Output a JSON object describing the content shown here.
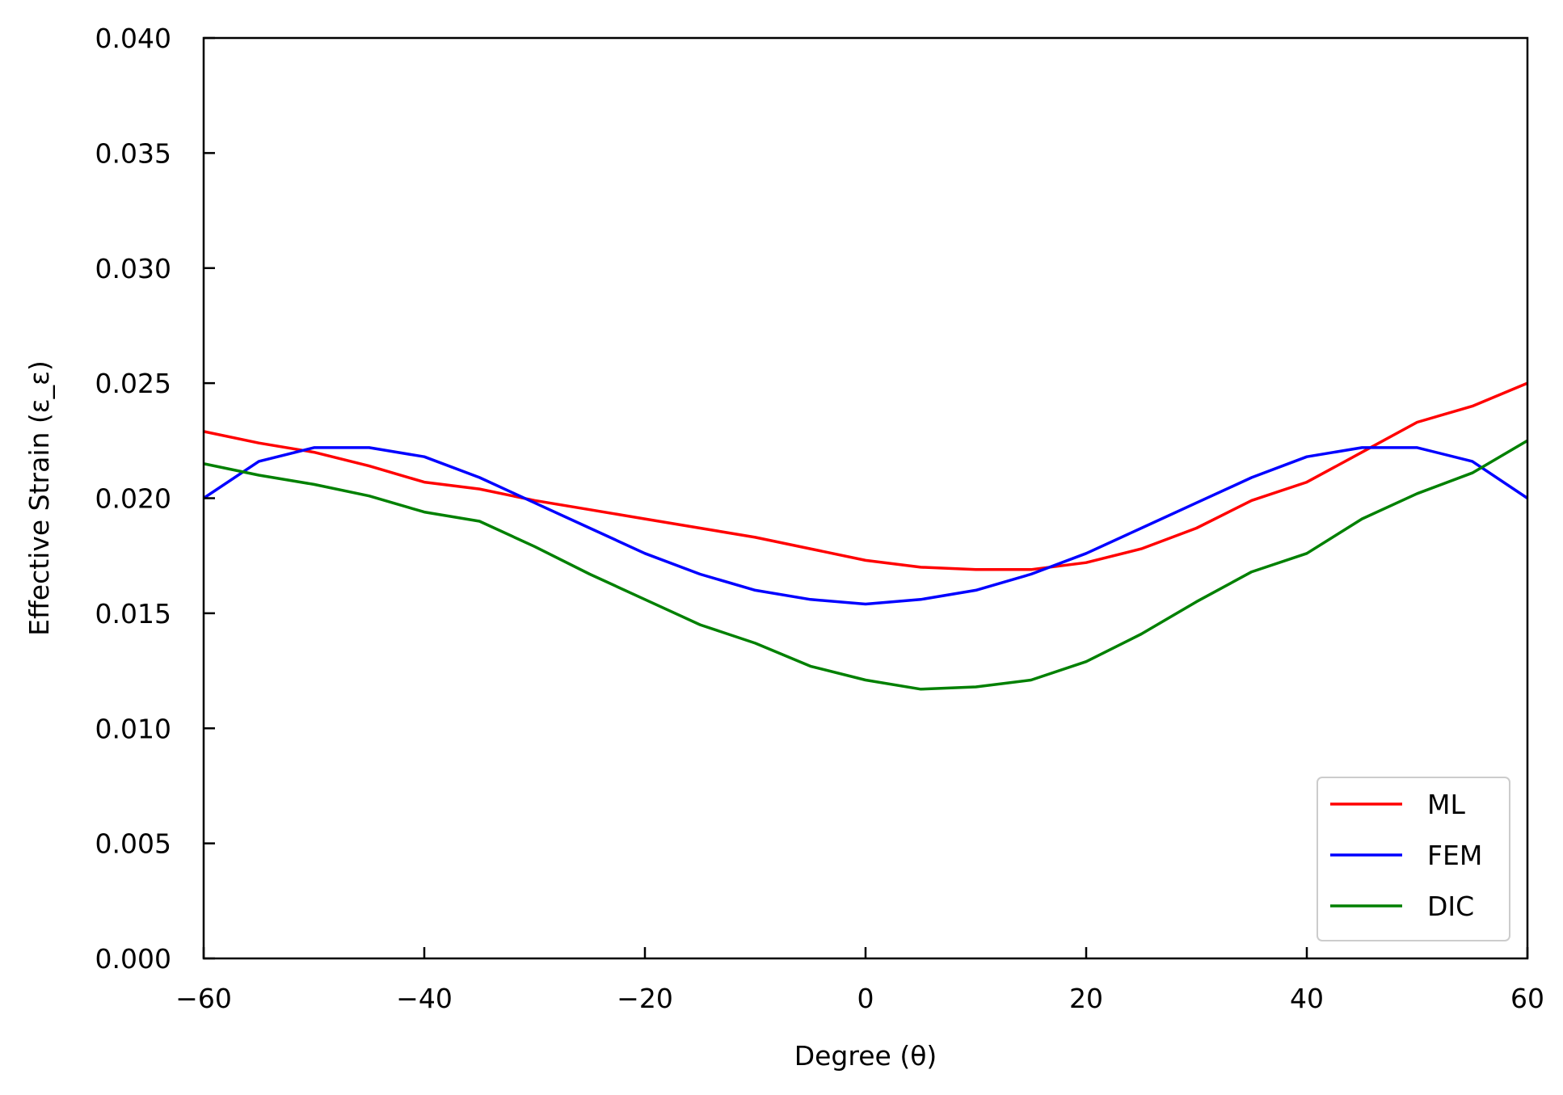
{
  "chart_data": {
    "type": "line",
    "title": "",
    "xlabel": "Degree (θ)",
    "ylabel": "Effective Strain (ε_ε)",
    "xlim": [
      -60,
      60
    ],
    "ylim": [
      0,
      0.04
    ],
    "x_ticks": [
      -60,
      -40,
      -20,
      0,
      20,
      40,
      60
    ],
    "x_tick_labels": [
      "−60",
      "−40",
      "−20",
      "0",
      "20",
      "40",
      "60"
    ],
    "y_ticks": [
      0,
      0.005,
      0.01,
      0.015,
      0.02,
      0.025,
      0.03,
      0.035,
      0.04
    ],
    "y_tick_labels": [
      "0.000",
      "0.005",
      "0.010",
      "0.015",
      "0.020",
      "0.025",
      "0.030",
      "0.035",
      "0.040"
    ],
    "grid": false,
    "legend_position": "bottom-right",
    "series": [
      {
        "name": "ML",
        "color": "#ff0000",
        "x": [
          -60,
          -55,
          -50,
          -45,
          -40,
          -35,
          -30,
          -25,
          -20,
          -15,
          -10,
          -5,
          0,
          5,
          10,
          15,
          20,
          25,
          30,
          35,
          40,
          45,
          50,
          55,
          60
        ],
        "y": [
          0.0229,
          0.0224,
          0.022,
          0.0214,
          0.0207,
          0.0204,
          0.0199,
          0.0195,
          0.0191,
          0.0187,
          0.0183,
          0.0178,
          0.0173,
          0.017,
          0.0169,
          0.0169,
          0.0172,
          0.0178,
          0.0187,
          0.0199,
          0.0207,
          0.022,
          0.0233,
          0.024,
          0.025
        ]
      },
      {
        "name": "FEM",
        "color": "#0000ff",
        "x": [
          -60,
          -55,
          -50,
          -45,
          -40,
          -35,
          -30,
          -25,
          -20,
          -15,
          -10,
          -5,
          0,
          5,
          10,
          15,
          20,
          25,
          30,
          35,
          40,
          45,
          50,
          55,
          60
        ],
        "y": [
          0.02,
          0.0216,
          0.0222,
          0.0222,
          0.0218,
          0.0209,
          0.0198,
          0.0187,
          0.0176,
          0.0167,
          0.016,
          0.0156,
          0.0154,
          0.0156,
          0.016,
          0.0167,
          0.0176,
          0.0187,
          0.0198,
          0.0209,
          0.0218,
          0.0222,
          0.0222,
          0.0216,
          0.02
        ]
      },
      {
        "name": "DIC",
        "color": "#008000",
        "x": [
          -60,
          -55,
          -50,
          -45,
          -40,
          -35,
          -30,
          -25,
          -20,
          -15,
          -10,
          -5,
          0,
          5,
          10,
          15,
          20,
          25,
          30,
          35,
          40,
          45,
          50,
          55,
          60
        ],
        "y": [
          0.0215,
          0.021,
          0.0206,
          0.0201,
          0.0194,
          0.019,
          0.0179,
          0.0167,
          0.0156,
          0.0145,
          0.0137,
          0.0127,
          0.0121,
          0.0117,
          0.0118,
          0.0121,
          0.0129,
          0.0141,
          0.0155,
          0.0168,
          0.0176,
          0.0191,
          0.0202,
          0.0211,
          0.0225
        ]
      }
    ]
  }
}
